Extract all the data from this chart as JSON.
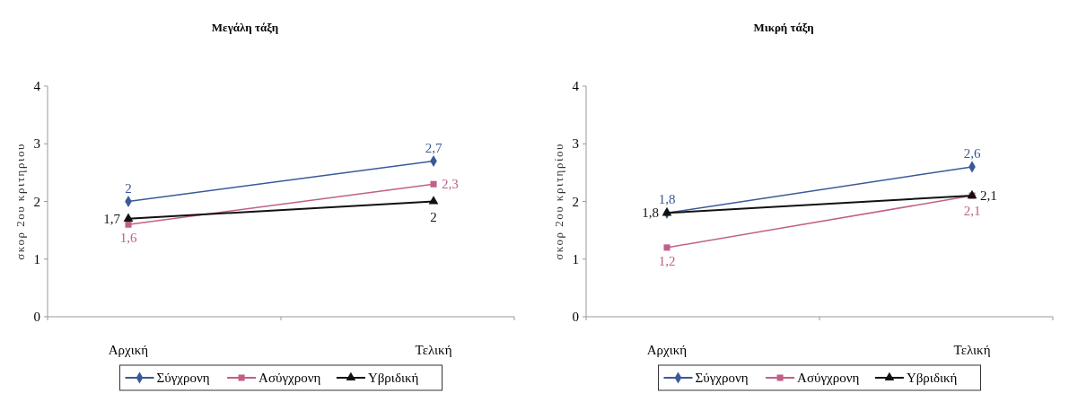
{
  "chart_data": [
    {
      "type": "line",
      "title": "Μεγάλη τάξη",
      "ylabel": "σκορ 2ου κριτηριου",
      "categories": [
        "Αρχική",
        "Τελική"
      ],
      "ylim": [
        0,
        4
      ],
      "yticks": [
        0,
        1,
        2,
        3,
        4
      ],
      "legend": "bottom",
      "grid": false,
      "series": [
        {
          "name": "Σύγχρονη",
          "color": "#3b5998",
          "marker": "diamond",
          "values": [
            2,
            2.7
          ],
          "value_labels": [
            "2",
            "2,7"
          ]
        },
        {
          "name": "Ασύγχρονη",
          "color": "#c0608a",
          "marker": "square",
          "values": [
            1.6,
            2.3
          ],
          "value_labels": [
            "1,6",
            "2,3"
          ]
        },
        {
          "name": "Υβριδική",
          "color": "#111111",
          "marker": "triangle",
          "values": [
            1.7,
            2
          ],
          "value_labels": [
            "1,7",
            "2"
          ]
        }
      ]
    },
    {
      "type": "line",
      "title": "Μικρή τάξη",
      "ylabel": "σκορ 2ου κριτηρίου",
      "categories": [
        "Αρχική",
        "Τελική"
      ],
      "ylim": [
        0,
        4
      ],
      "yticks": [
        0,
        1,
        2,
        3,
        4
      ],
      "legend": "bottom",
      "grid": false,
      "series": [
        {
          "name": "Σύγχρονη",
          "color": "#3b5998",
          "marker": "diamond",
          "values": [
            1.8,
            2.6
          ],
          "value_labels": [
            "1,8",
            "2,6"
          ]
        },
        {
          "name": "Ασύγχρονη",
          "color": "#c0608a",
          "marker": "square",
          "values": [
            1.2,
            2.1
          ],
          "value_labels": [
            "1,2",
            "2,1"
          ]
        },
        {
          "name": "Υβριδική",
          "color": "#111111",
          "marker": "triangle",
          "values": [
            1.8,
            2.1
          ],
          "value_labels": [
            "1,8",
            "2,1"
          ]
        }
      ]
    }
  ]
}
